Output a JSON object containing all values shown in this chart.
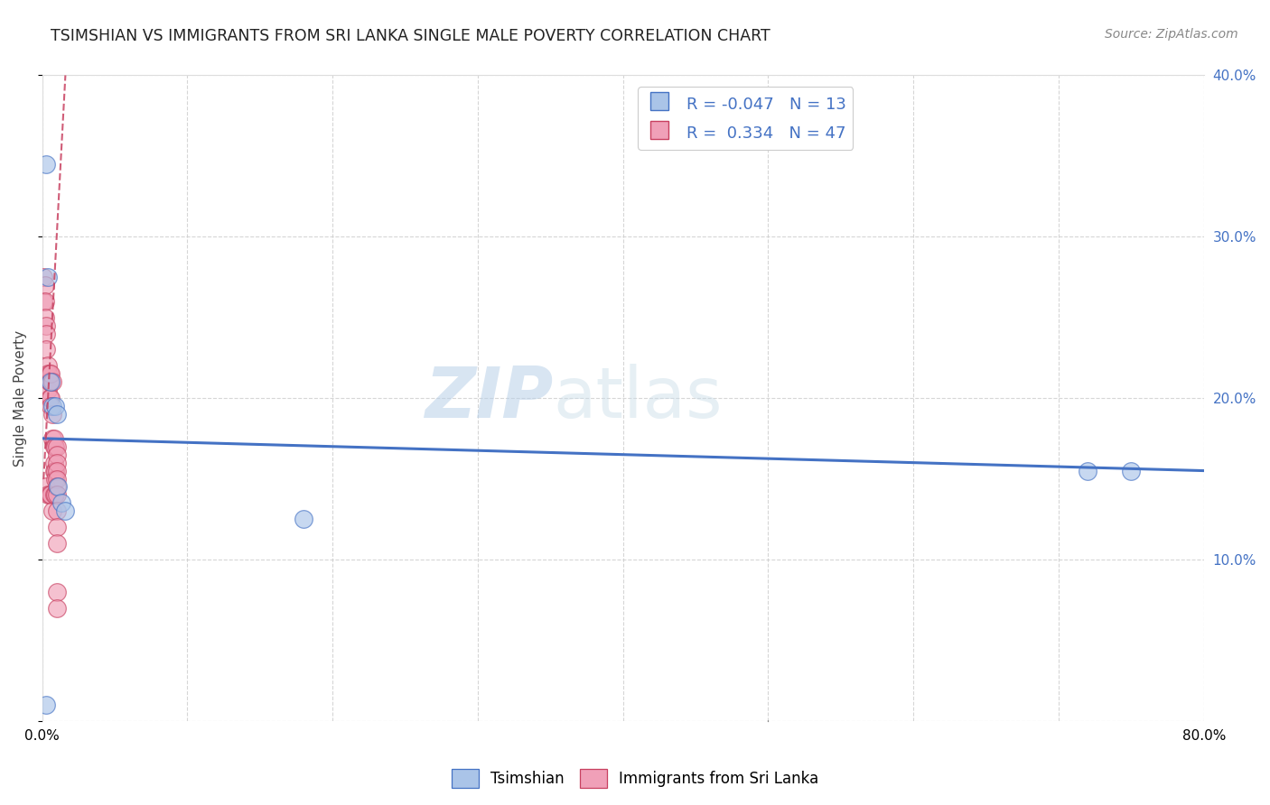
{
  "title": "TSIMSHIAN VS IMMIGRANTS FROM SRI LANKA SINGLE MALE POVERTY CORRELATION CHART",
  "source": "Source: ZipAtlas.com",
  "ylabel": "Single Male Poverty",
  "legend_label_1": "Tsimshian",
  "legend_label_2": "Immigrants from Sri Lanka",
  "R1": -0.047,
  "N1": 13,
  "R2": 0.334,
  "N2": 47,
  "color1": "#aac4e8",
  "color2": "#f0a0b8",
  "trendline1_color": "#4472c4",
  "trendline2_color": "#c84060",
  "xlim": [
    0.0,
    0.8
  ],
  "ylim": [
    0.0,
    0.4
  ],
  "xticks": [
    0.0,
    0.1,
    0.2,
    0.3,
    0.4,
    0.5,
    0.6,
    0.7,
    0.8
  ],
  "yticks": [
    0.0,
    0.1,
    0.2,
    0.3,
    0.4
  ],
  "xticklabels": [
    "0.0%",
    "",
    "",
    "",
    "",
    "",
    "",
    "",
    "80.0%"
  ],
  "yticklabels_right": [
    "",
    "10.0%",
    "20.0%",
    "30.0%",
    "40.0%"
  ],
  "tsimshian_x": [
    0.003,
    0.004,
    0.006,
    0.007,
    0.009,
    0.011,
    0.013,
    0.016,
    0.18,
    0.72,
    0.75,
    0.003,
    0.01
  ],
  "tsimshian_y": [
    0.345,
    0.275,
    0.21,
    0.195,
    0.195,
    0.145,
    0.135,
    0.13,
    0.125,
    0.155,
    0.155,
    0.01,
    0.19
  ],
  "srilanka_x": [
    0.001,
    0.001,
    0.002,
    0.002,
    0.002,
    0.003,
    0.003,
    0.003,
    0.003,
    0.004,
    0.004,
    0.004,
    0.004,
    0.005,
    0.005,
    0.005,
    0.005,
    0.005,
    0.006,
    0.006,
    0.006,
    0.006,
    0.007,
    0.007,
    0.007,
    0.007,
    0.008,
    0.008,
    0.008,
    0.008,
    0.008,
    0.009,
    0.009,
    0.009,
    0.009,
    0.01,
    0.01,
    0.01,
    0.01,
    0.01,
    0.01,
    0.01,
    0.01,
    0.01,
    0.01,
    0.01,
    0.01
  ],
  "srilanka_y": [
    0.275,
    0.26,
    0.27,
    0.26,
    0.25,
    0.245,
    0.24,
    0.23,
    0.145,
    0.22,
    0.215,
    0.205,
    0.14,
    0.215,
    0.21,
    0.21,
    0.2,
    0.14,
    0.215,
    0.2,
    0.195,
    0.14,
    0.21,
    0.19,
    0.175,
    0.13,
    0.175,
    0.17,
    0.16,
    0.155,
    0.14,
    0.17,
    0.155,
    0.15,
    0.14,
    0.17,
    0.165,
    0.16,
    0.155,
    0.15,
    0.145,
    0.14,
    0.13,
    0.12,
    0.11,
    0.08,
    0.07
  ],
  "watermark_zip": "ZIP",
  "watermark_atlas": "atlas",
  "background_color": "#ffffff",
  "trendline1_y_start": 0.175,
  "trendline1_y_end": 0.155,
  "trendline2_x_start": 0.001,
  "trendline2_y_start": 0.15,
  "trendline2_x_end": 0.016,
  "trendline2_y_end": 0.4
}
